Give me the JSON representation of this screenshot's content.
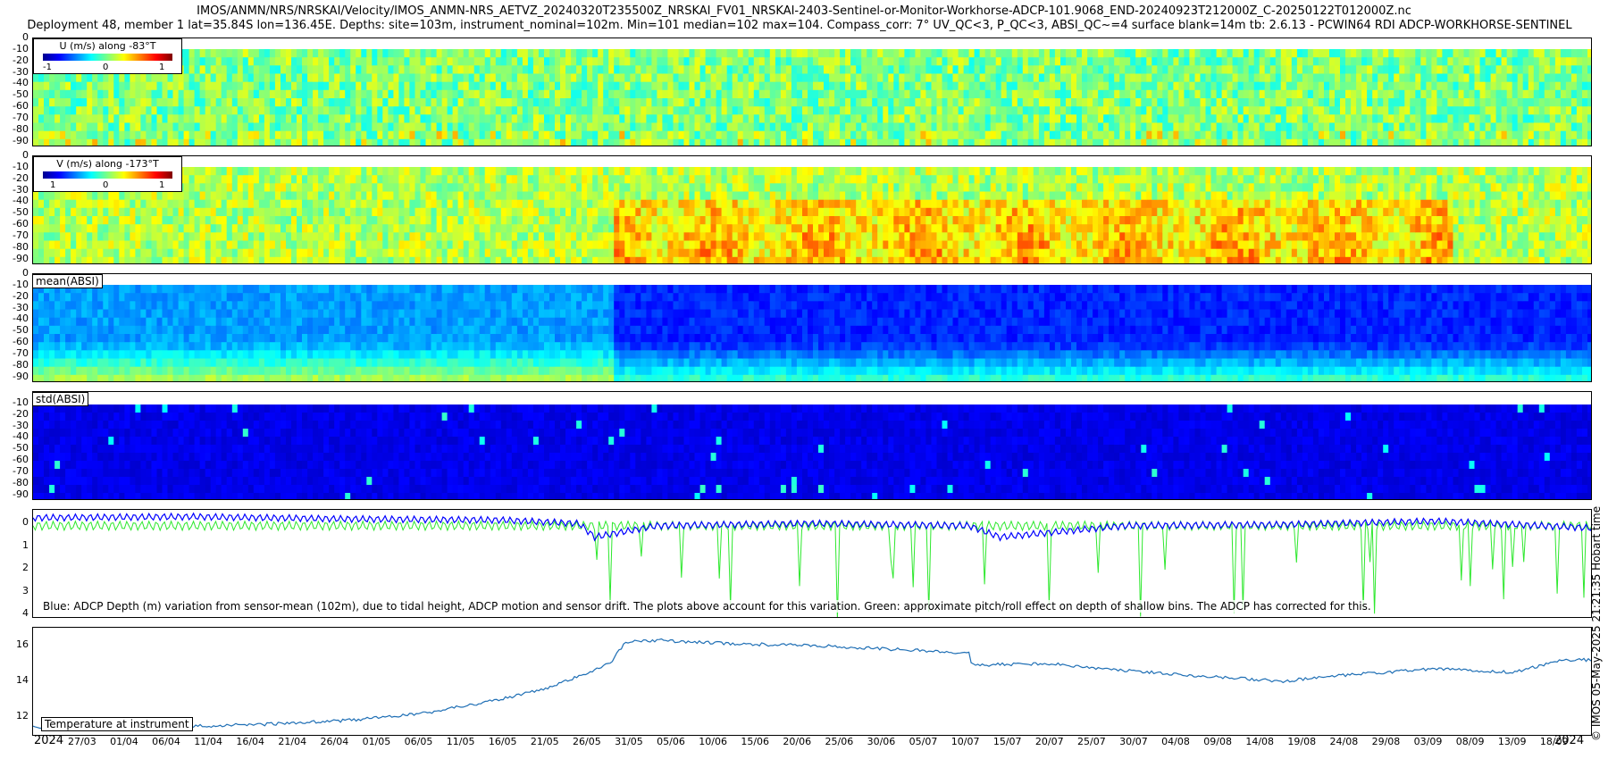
{
  "header": {
    "line1": "IMOS/ANMN/NRS/NRSKAI/Velocity/IMOS_ANMN-NRS_AETVZ_20240320T235500Z_NRSKAI_FV01_NRSKAI-2403-Sentinel-or-Monitor-Workhorse-ADCP-101.9068_END-20240923T212000Z_C-20250122T012000Z.nc",
    "line2": "Deployment 48, member 1 lat=35.84S lon=136.45E. Depths: site=103m, instrument_nominal=102m. Min=101 median=102 max=104. Compass_corr: 7° UV_QC<3, P_QC<3, ABSI_QC~=4 surface blank=14m tb: 2.6.13 - PCWIN64 RDI ADCP-WORKHORSE-SENTINEL"
  },
  "side_label": "© IMOS 05-May-2025 21:21:35 Hobart time",
  "chart_data": [
    {
      "type": "heatmap",
      "title": "U (m/s) along -83°T",
      "colorbar_ticks": [
        "-1",
        "0",
        "1"
      ],
      "yticks": [
        "0",
        "-10",
        "-20",
        "-30",
        "-40",
        "-50",
        "-60",
        "-70",
        "-80",
        "-90"
      ],
      "y_range": [
        0,
        -95
      ],
      "colors": [
        "#00008f",
        "#0000ff",
        "#007fff",
        "#00ffff",
        "#7fff7f",
        "#ffff00",
        "#ff7f00",
        "#ff0000",
        "#7f0000"
      ]
    },
    {
      "type": "heatmap",
      "title": "V (m/s) along -173°T",
      "colorbar_ticks": [
        "1",
        "0",
        "1"
      ],
      "yticks": [
        "0",
        "-10",
        "-20",
        "-30",
        "-40",
        "-50",
        "-60",
        "-70",
        "-80",
        "-90"
      ],
      "y_range": [
        0,
        -95
      ]
    },
    {
      "type": "heatmap",
      "title": "mean(ABSI)",
      "yticks": [
        "0",
        "-10",
        "-20",
        "-30",
        "-40",
        "-50",
        "-60",
        "-70",
        "-80",
        "-90"
      ],
      "y_range": [
        0,
        -95
      ]
    },
    {
      "type": "heatmap",
      "title": "std(ABSI)",
      "yticks": [
        "-10",
        "-20",
        "-30",
        "-40",
        "-50",
        "-60",
        "-70",
        "-80",
        "-90"
      ],
      "y_range": [
        0,
        -95
      ]
    },
    {
      "type": "line",
      "yticks": [
        "0",
        "1",
        "2",
        "3",
        "4"
      ],
      "ylim": [
        -0.6,
        4.2
      ],
      "note": "Blue: ADCP Depth (m) variation from sensor-mean (102m), due to tidal height, ADCP motion and sensor drift. The plots above account for this variation. Green: approximate pitch/roll effect on depth of shallow bins. The ADCP has corrected for this.",
      "series": [
        {
          "color": "#0000ff",
          "x": [
            0,
            0.1,
            0.2,
            0.3,
            0.35,
            0.36,
            0.4,
            0.5,
            0.6,
            0.62,
            0.7,
            0.8,
            0.9,
            1.0
          ],
          "y": [
            -0.25,
            -0.3,
            -0.2,
            -0.15,
            0.0,
            0.6,
            0.1,
            0.0,
            0.1,
            0.6,
            0.1,
            0.05,
            -0.1,
            0.2
          ]
        }
      ]
    },
    {
      "type": "line",
      "title": "Temperature at instrument",
      "yticks": [
        "12",
        "14",
        "16"
      ],
      "ylim": [
        10.9,
        17.0
      ],
      "series": [
        {
          "color": "#1f6fb5",
          "x": [
            0.0,
            0.05,
            0.15,
            0.2,
            0.25,
            0.3,
            0.33,
            0.37,
            0.38,
            0.4,
            0.45,
            0.5,
            0.55,
            0.6,
            0.602,
            0.65,
            0.7,
            0.75,
            0.8,
            0.85,
            0.9,
            0.95,
            0.98,
            1.0
          ],
          "y": [
            11.4,
            11.35,
            11.6,
            11.8,
            12.2,
            13.0,
            13.6,
            15.0,
            16.2,
            16.3,
            16.1,
            16.0,
            15.8,
            15.6,
            14.9,
            15.0,
            14.6,
            14.3,
            14.0,
            14.4,
            14.7,
            14.5,
            15.2,
            15.2
          ]
        }
      ]
    }
  ],
  "x_axis": {
    "labels": [
      "2024",
      "27/03",
      "01/04",
      "06/04",
      "11/04",
      "16/04",
      "21/04",
      "26/04",
      "01/05",
      "06/05",
      "11/05",
      "16/05",
      "21/05",
      "26/05",
      "31/05",
      "05/06",
      "10/06",
      "15/06",
      "20/06",
      "25/06",
      "30/06",
      "05/07",
      "10/07",
      "15/07",
      "20/07",
      "25/07",
      "30/07",
      "04/08",
      "09/08",
      "14/08",
      "19/08",
      "24/08",
      "29/08",
      "03/09",
      "08/09",
      "13/09",
      "18/09",
      "2024"
    ]
  }
}
